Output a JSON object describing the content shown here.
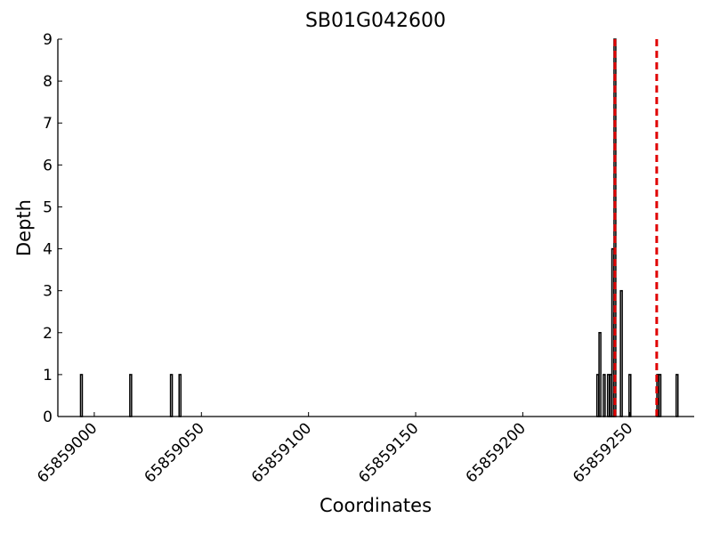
{
  "chart_data": {
    "type": "bar",
    "title": "SB01G042600",
    "x_label": "Coordinates",
    "y_label": "Depth",
    "x": [
      65858994,
      65859017,
      65859036,
      65859040,
      65859235,
      65859236,
      65859238,
      65859240,
      65859241,
      65859242,
      65859243,
      65859246,
      65859250,
      65859263,
      65859264,
      65859272
    ],
    "values": [
      1,
      1,
      1,
      1,
      1,
      2,
      1,
      1,
      1,
      4,
      9,
      3,
      1,
      1,
      1,
      1
    ],
    "color": "#000000",
    "vlines": {
      "color": "#e00000",
      "x": [
        65859243,
        65859262.5
      ]
    },
    "xlim": [
      65858983,
      65859280
    ],
    "xticks": [
      65859000,
      65859050,
      65859100,
      65859150,
      65859200,
      65859250
    ],
    "ylim": [
      0,
      9
    ],
    "yticks": [
      0,
      1,
      2,
      3,
      4,
      5,
      6,
      7,
      8,
      9
    ]
  }
}
